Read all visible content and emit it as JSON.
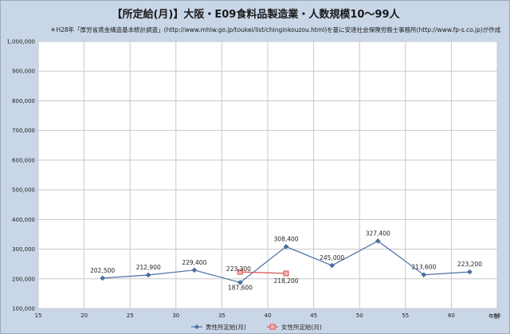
{
  "chart_data": {
    "type": "line",
    "title": "【所定給(月)】大阪・E09食料品製造業・人数規模10～99人",
    "subtitle": "＊H28年「厚労省賃金構造基本統計調査」(http://www.mhlw.go.jp/toukei/list/chinginkouzou.html)を基に安達社会保険労務士事務所(http://www.fp-s.co.jp)が作成",
    "xlabel": "年齢",
    "ylabel": "",
    "xlim": [
      15,
      65
    ],
    "ylim": [
      100000,
      1000000
    ],
    "x_ticks": [
      "15",
      "20",
      "25",
      "30",
      "35",
      "40",
      "45",
      "50",
      "55",
      "60",
      "65"
    ],
    "y_ticks": [
      "100,000",
      "200,000",
      "300,000",
      "400,000",
      "500,000",
      "600,000",
      "700,000",
      "800,000",
      "900,000",
      "1,000,000"
    ],
    "grid": true,
    "legend_position": "bottom",
    "series": [
      {
        "name": "男性所定給(月)",
        "color": "#4a6fa5",
        "marker": "diamond",
        "x": [
          22,
          27,
          32,
          37,
          42,
          47,
          52,
          57,
          62
        ],
        "values": [
          202500,
          212900,
          229400,
          187600,
          308400,
          245000,
          327400,
          213600,
          223200
        ],
        "labels": [
          "202,500",
          "212,900",
          "229,400",
          "187,600",
          "308,400",
          "245,000",
          "327,400",
          "213,600",
          "223,200"
        ]
      },
      {
        "name": "女性所定給(月)",
        "color": "#d9534f",
        "marker": "square",
        "x": [
          37,
          42
        ],
        "values": [
          223300,
          218200
        ],
        "labels": [
          "223,300",
          "218,200"
        ]
      }
    ]
  }
}
